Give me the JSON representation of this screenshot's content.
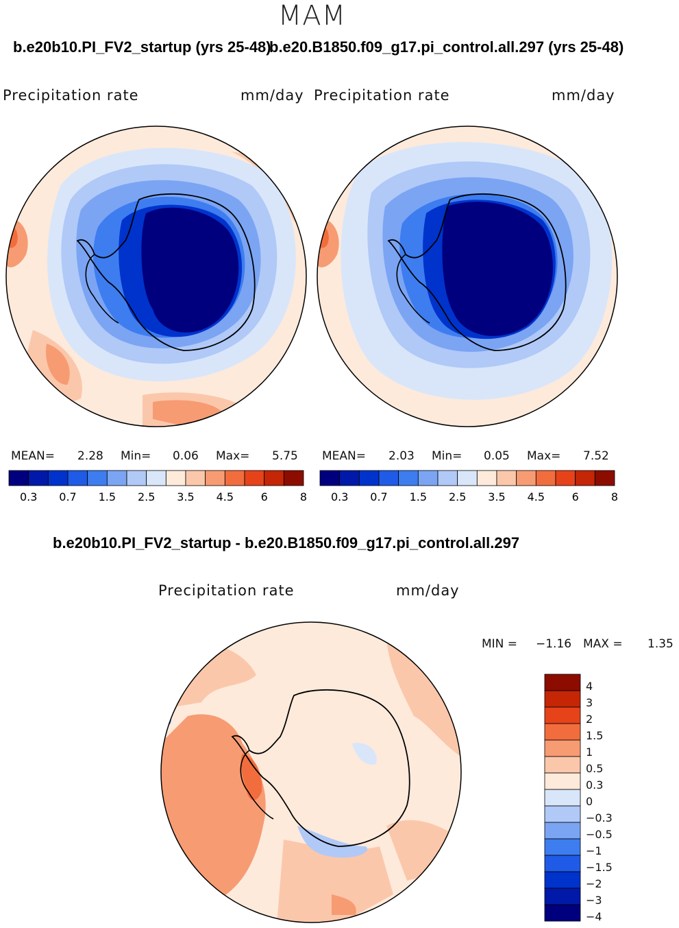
{
  "season": "MAM",
  "top_titles": {
    "left": "b.e20b10.PI_FV2_startup (yrs 25-48)",
    "right": "b.e20.B1850.f09_g17.pi_control.all.297 (yrs 25-48)"
  },
  "panels": [
    {
      "variable": "Precipitation rate",
      "units": "mm/day",
      "stats": {
        "mean_label": "MEAN=",
        "mean": "2.28",
        "min_label": "Min=",
        "min": "0.06",
        "max_label": "Max=",
        "max": "5.75"
      }
    },
    {
      "variable": "Precipitation rate",
      "units": "mm/day",
      "stats": {
        "mean_label": "MEAN=",
        "mean": "2.03",
        "min_label": "Min=",
        "min": "0.05",
        "max_label": "Max=",
        "max": "7.52"
      }
    }
  ],
  "colorbar_abs": {
    "colors": [
      "#00007f",
      "#0019a8",
      "#0033cc",
      "#1f5be6",
      "#3d7df0",
      "#7ba4f3",
      "#b0c9f7",
      "#d9e6fa",
      "#fdeadb",
      "#fbc7ab",
      "#f79b73",
      "#f26d3d",
      "#e6431b",
      "#c42606",
      "#8c0d00"
    ],
    "labels": [
      "0.3",
      "0.7",
      "1.5",
      "2.5",
      "3.5",
      "4.5",
      "6",
      "8"
    ]
  },
  "diff_title": "b.e20b10.PI_FV2_startup - b.e20.B1850.f09_g17.pi_control.all.297",
  "diff_panel": {
    "variable": "Precipitation rate",
    "units": "mm/day",
    "stats": {
      "min_label": "MIN =",
      "min": "−1.16",
      "max_label": "MAX =",
      "max": "1.35"
    }
  },
  "colorbar_diff": {
    "colors": [
      "#8c0d00",
      "#c42606",
      "#e6431b",
      "#f26d3d",
      "#f79b73",
      "#fbc7ab",
      "#fdeadb",
      "#d9e6fa",
      "#b0c9f7",
      "#7ba4f3",
      "#3d7df0",
      "#1f5be6",
      "#0033cc",
      "#0019a8",
      "#00007f"
    ],
    "labels": [
      "4",
      "3",
      "2",
      "1.5",
      "1",
      "0.5",
      "0.3",
      "0",
      "−0.3",
      "−0.5",
      "−1",
      "−1.5",
      "−2",
      "−3",
      "−4"
    ]
  },
  "palette": {
    "cream": "#fdeadb",
    "light_salmon": "#fbc7ab",
    "salmon": "#f79b73",
    "orange": "#f26d3d",
    "pale_blue": "#d9e6fa",
    "light_blue": "#b0c9f7",
    "blue": "#7ba4f3",
    "mid_blue": "#3d7df0",
    "deep_blue": "#0033cc",
    "navy": "#00007f"
  }
}
